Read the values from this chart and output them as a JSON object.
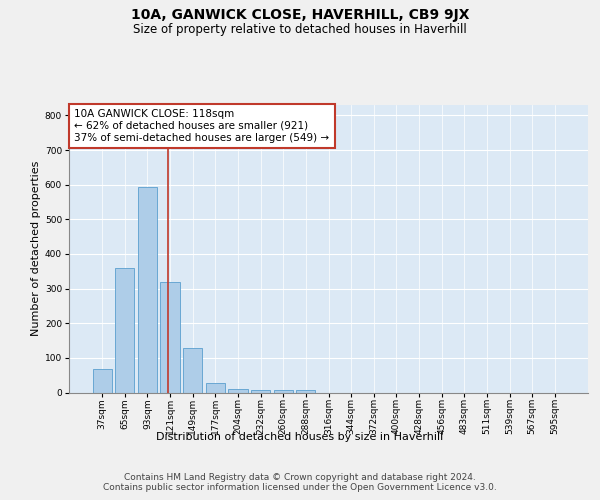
{
  "title": "10A, GANWICK CLOSE, HAVERHILL, CB9 9JX",
  "subtitle": "Size of property relative to detached houses in Haverhill",
  "xlabel": "Distribution of detached houses by size in Haverhill",
  "ylabel": "Number of detached properties",
  "bar_labels": [
    "37sqm",
    "65sqm",
    "93sqm",
    "121sqm",
    "149sqm",
    "177sqm",
    "204sqm",
    "232sqm",
    "260sqm",
    "288sqm",
    "316sqm",
    "344sqm",
    "372sqm",
    "400sqm",
    "428sqm",
    "456sqm",
    "483sqm",
    "511sqm",
    "539sqm",
    "567sqm",
    "595sqm"
  ],
  "bar_values": [
    68,
    360,
    594,
    318,
    128,
    27,
    9,
    6,
    6,
    7,
    0,
    0,
    0,
    0,
    0,
    0,
    0,
    0,
    0,
    0,
    0
  ],
  "bar_color": "#aecde8",
  "bar_edge_color": "#5a9fce",
  "background_color": "#dce9f5",
  "grid_color": "#ffffff",
  "property_line_color": "#c0392b",
  "annotation_text": "10A GANWICK CLOSE: 118sqm\n← 62% of detached houses are smaller (921)\n37% of semi-detached houses are larger (549) →",
  "annotation_box_color": "#ffffff",
  "annotation_box_edge_color": "#c0392b",
  "ylim": [
    0,
    830
  ],
  "yticks": [
    0,
    100,
    200,
    300,
    400,
    500,
    600,
    700,
    800
  ],
  "footer_text": "Contains HM Land Registry data © Crown copyright and database right 2024.\nContains public sector information licensed under the Open Government Licence v3.0.",
  "title_fontsize": 10,
  "subtitle_fontsize": 8.5,
  "annotation_fontsize": 7.5,
  "tick_fontsize": 6.5,
  "ylabel_fontsize": 8,
  "xlabel_fontsize": 8,
  "footer_fontsize": 6.5,
  "fig_bg": "#f0f0f0"
}
